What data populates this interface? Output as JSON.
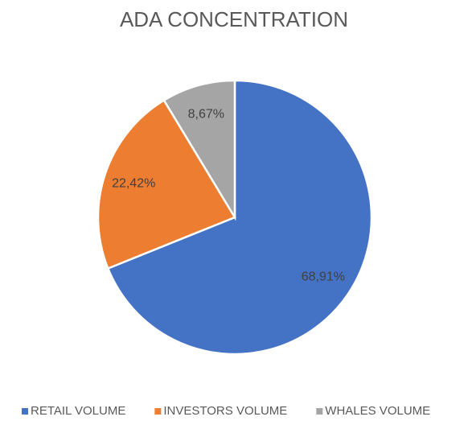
{
  "chart_data": {
    "type": "pie",
    "title": "ADA CONCENTRATION",
    "categories": [
      "RETAIL VOLUME",
      "INVESTORS VOLUME",
      "WHALES VOLUME"
    ],
    "values": [
      68.91,
      22.42,
      8.67
    ],
    "value_labels": [
      "68,91%",
      "22,42%",
      "8,67%"
    ],
    "colors": [
      "#4472c4",
      "#ed7d31",
      "#a5a5a5"
    ],
    "legend": "bottom"
  }
}
